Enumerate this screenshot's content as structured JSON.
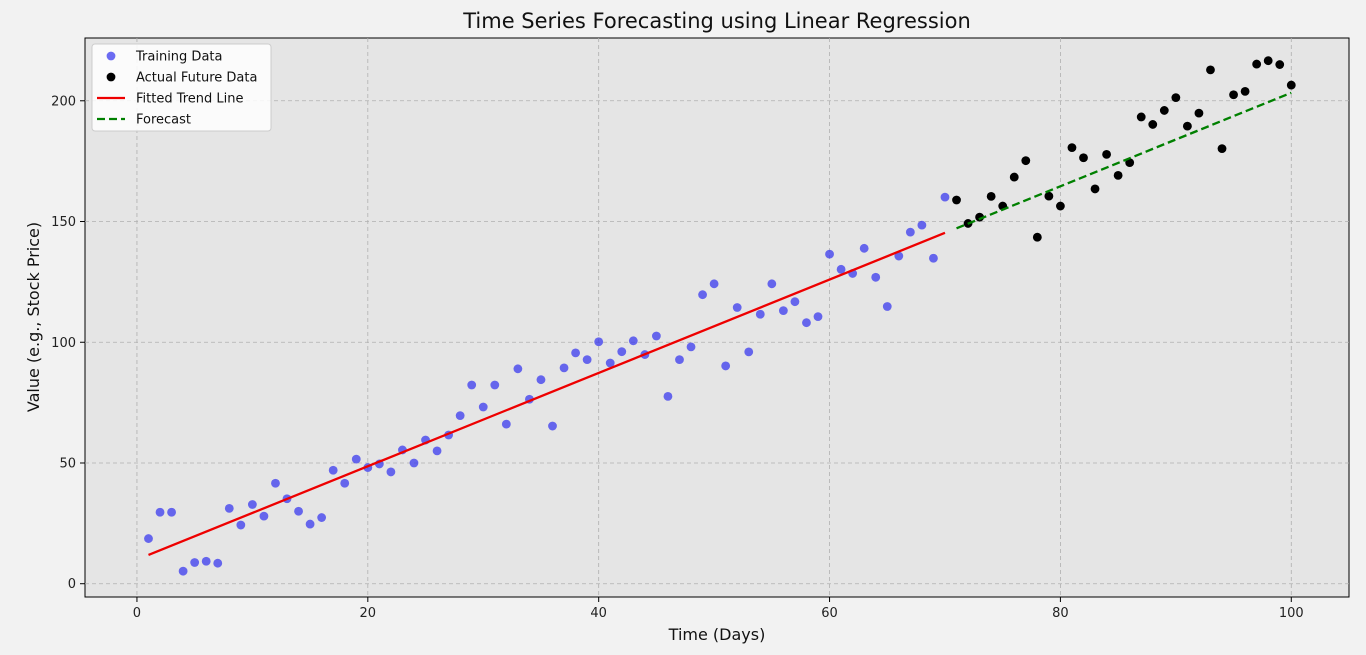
{
  "chart_data": {
    "type": "scatter",
    "title": "Time Series Forecasting using Linear Regression",
    "xlabel": "Time (Days)",
    "ylabel": "Value (e.g., Stock Price)",
    "xlim": [
      -4.5,
      105
    ],
    "ylim": [
      -5.5,
      226
    ],
    "xticks": [
      0,
      20,
      40,
      60,
      80,
      100
    ],
    "yticks": [
      0,
      50,
      100,
      150,
      200
    ],
    "grid": true,
    "legend_position": "top-left",
    "series": [
      {
        "name": "Training Data",
        "kind": "scatter",
        "color": "#3333ee",
        "points": [
          [
            1,
            18.7
          ],
          [
            2,
            29.6
          ],
          [
            3,
            29.6
          ],
          [
            4,
            5.2
          ],
          [
            5,
            8.8
          ],
          [
            6,
            9.3
          ],
          [
            7,
            8.5
          ],
          [
            8,
            31.2
          ],
          [
            9,
            24.3
          ],
          [
            10,
            32.8
          ],
          [
            11,
            28.0
          ],
          [
            12,
            41.6
          ],
          [
            13,
            35.2
          ],
          [
            14,
            30.0
          ],
          [
            15,
            24.7
          ],
          [
            16,
            27.4
          ],
          [
            17,
            47.0
          ],
          [
            18,
            41.6
          ],
          [
            19,
            51.6
          ],
          [
            20,
            48.1
          ],
          [
            21,
            49.6
          ],
          [
            22,
            46.3
          ],
          [
            23,
            55.4
          ],
          [
            24,
            50.0
          ],
          [
            25,
            59.5
          ],
          [
            26,
            55.0
          ],
          [
            27,
            61.6
          ],
          [
            28,
            69.6
          ],
          [
            29,
            82.3
          ],
          [
            30,
            73.2
          ],
          [
            31,
            82.3
          ],
          [
            32,
            66.1
          ],
          [
            33,
            89.0
          ],
          [
            34,
            76.4
          ],
          [
            35,
            84.5
          ],
          [
            36,
            65.3
          ],
          [
            37,
            89.4
          ],
          [
            38,
            95.6
          ],
          [
            39,
            92.8
          ],
          [
            40,
            100.2
          ],
          [
            41,
            91.4
          ],
          [
            42,
            96.1
          ],
          [
            43,
            100.6
          ],
          [
            44,
            94.9
          ],
          [
            45,
            102.6
          ],
          [
            46,
            77.6
          ],
          [
            47,
            92.8
          ],
          [
            48,
            98.1
          ],
          [
            49,
            119.7
          ],
          [
            50,
            124.2
          ],
          [
            51,
            90.2
          ],
          [
            52,
            114.4
          ],
          [
            53,
            96.0
          ],
          [
            54,
            111.6
          ],
          [
            55,
            124.2
          ],
          [
            56,
            113.1
          ],
          [
            57,
            116.8
          ],
          [
            58,
            108.1
          ],
          [
            59,
            110.6
          ],
          [
            60,
            136.5
          ],
          [
            61,
            130.2
          ],
          [
            62,
            128.5
          ],
          [
            63,
            138.9
          ],
          [
            64,
            126.9
          ],
          [
            65,
            114.8
          ],
          [
            66,
            135.7
          ],
          [
            67,
            145.6
          ],
          [
            68,
            148.5
          ],
          [
            69,
            134.8
          ],
          [
            70,
            160.1
          ]
        ]
      },
      {
        "name": "Actual Future Data",
        "kind": "scatter",
        "color": "#000000",
        "points": [
          [
            71,
            158.9
          ],
          [
            72,
            149.2
          ],
          [
            73,
            151.8
          ],
          [
            74,
            160.4
          ],
          [
            75,
            156.4
          ],
          [
            76,
            168.4
          ],
          [
            77,
            175.2
          ],
          [
            78,
            143.5
          ],
          [
            79,
            160.5
          ],
          [
            80,
            156.4
          ],
          [
            81,
            180.6
          ],
          [
            82,
            176.4
          ],
          [
            83,
            163.5
          ],
          [
            84,
            177.8
          ],
          [
            85,
            169.1
          ],
          [
            86,
            174.4
          ],
          [
            87,
            193.3
          ],
          [
            88,
            190.2
          ],
          [
            89,
            196.0
          ],
          [
            90,
            201.3
          ],
          [
            91,
            189.5
          ],
          [
            92,
            194.9
          ],
          [
            93,
            212.8
          ],
          [
            94,
            180.2
          ],
          [
            95,
            202.5
          ],
          [
            96,
            203.9
          ],
          [
            97,
            215.2
          ],
          [
            98,
            216.6
          ],
          [
            99,
            215.0
          ],
          [
            100,
            206.5
          ]
        ]
      },
      {
        "name": "Fitted Trend Line",
        "kind": "line",
        "color": "#ee0000",
        "dash": "solid",
        "points": [
          [
            1,
            11.9
          ],
          [
            70,
            145.3
          ]
        ]
      },
      {
        "name": "Forecast",
        "kind": "line",
        "color": "#008000",
        "dash": "dashed",
        "points": [
          [
            71,
            147.2
          ],
          [
            100,
            203.3
          ]
        ]
      }
    ]
  }
}
